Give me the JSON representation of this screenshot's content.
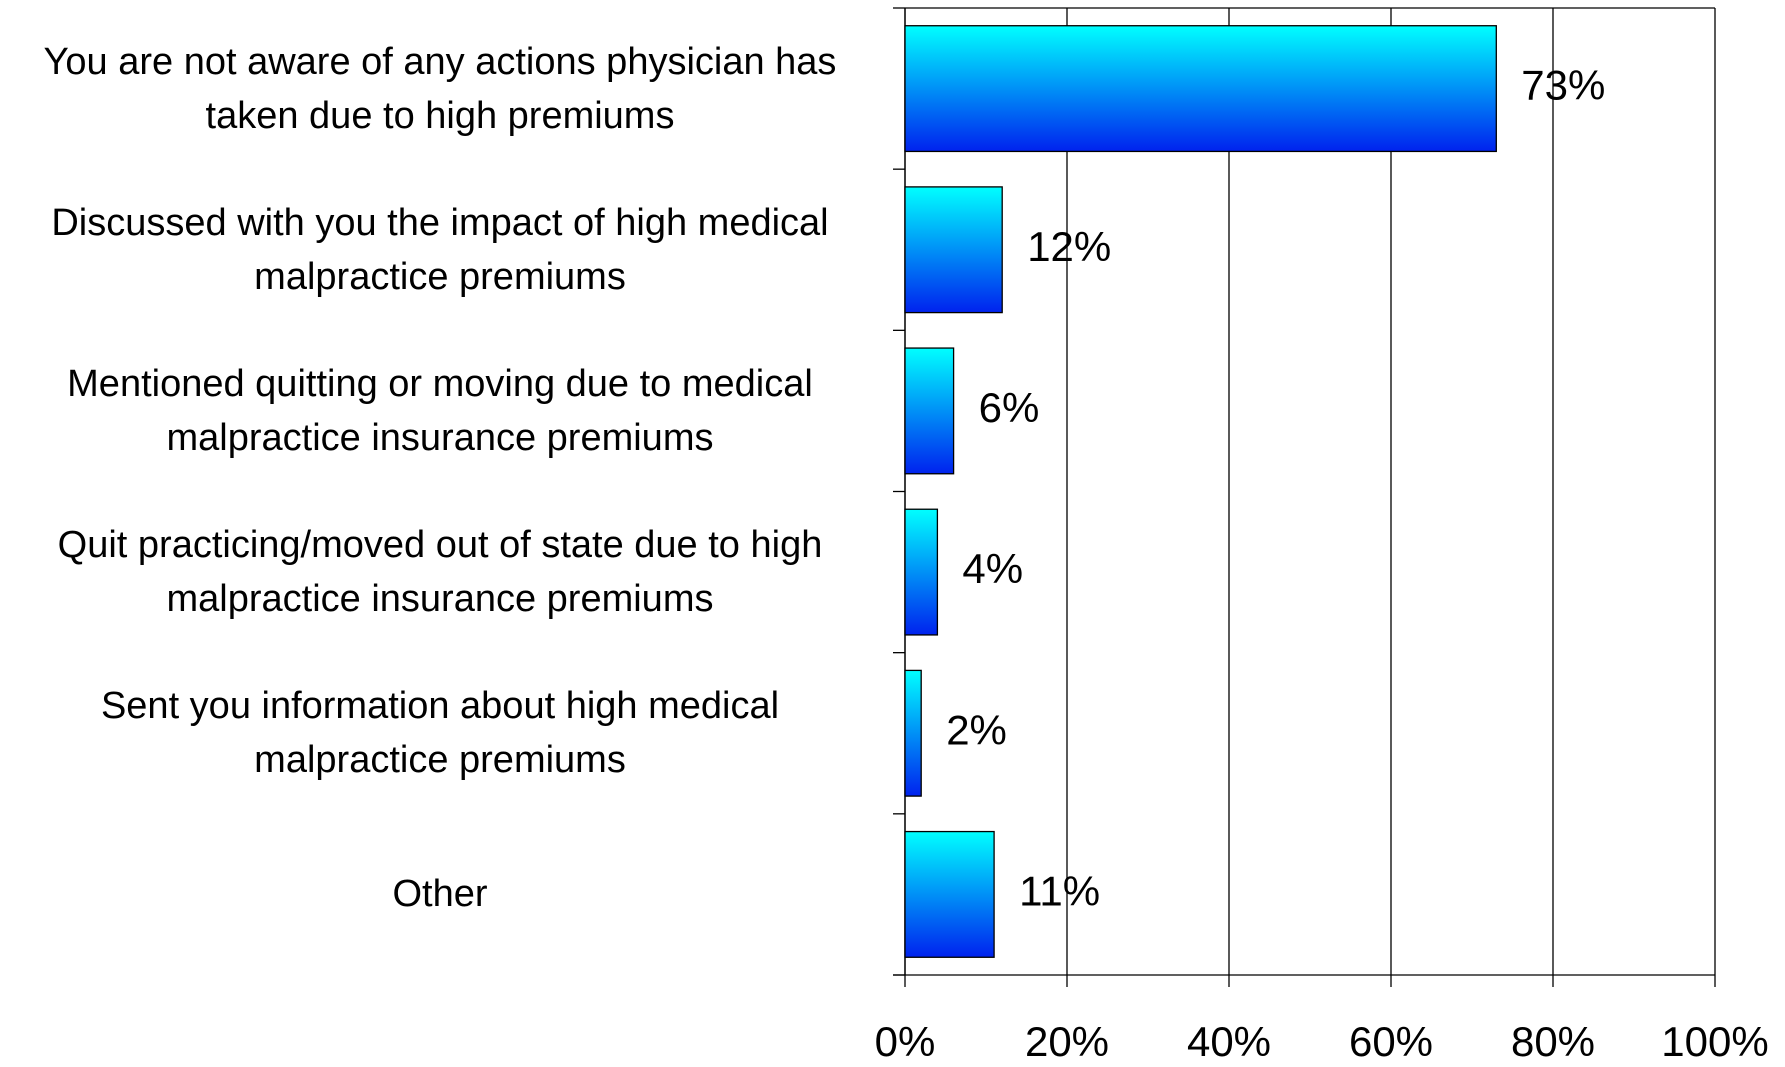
{
  "chart_data": {
    "type": "hbar",
    "categories": [
      "You are not aware of any actions physician has taken due to high premiums",
      "Discussed with you the impact of high medical malpractice premiums",
      "Mentioned quitting or moving due to medical malpractice insurance premiums",
      "Quit practicing/moved out of state due to high malpractice insurance premiums",
      "Sent you information about high medical malpractice premiums",
      "Other"
    ],
    "values": [
      73,
      12,
      6,
      4,
      2,
      11
    ],
    "value_labels": [
      "73%",
      "12%",
      "6%",
      "4%",
      "2%",
      "11%"
    ],
    "gradient": [
      "#00ffff",
      "#0022ee"
    ],
    "xlim": [
      0,
      100
    ],
    "xticks": [
      {
        "value": 0,
        "label": "0%"
      },
      {
        "value": 20,
        "label": "20%"
      },
      {
        "value": 40,
        "label": "40%"
      },
      {
        "value": 60,
        "label": "60%"
      },
      {
        "value": 80,
        "label": "80%"
      },
      {
        "value": 100,
        "label": "100%"
      }
    ],
    "grid": true
  }
}
